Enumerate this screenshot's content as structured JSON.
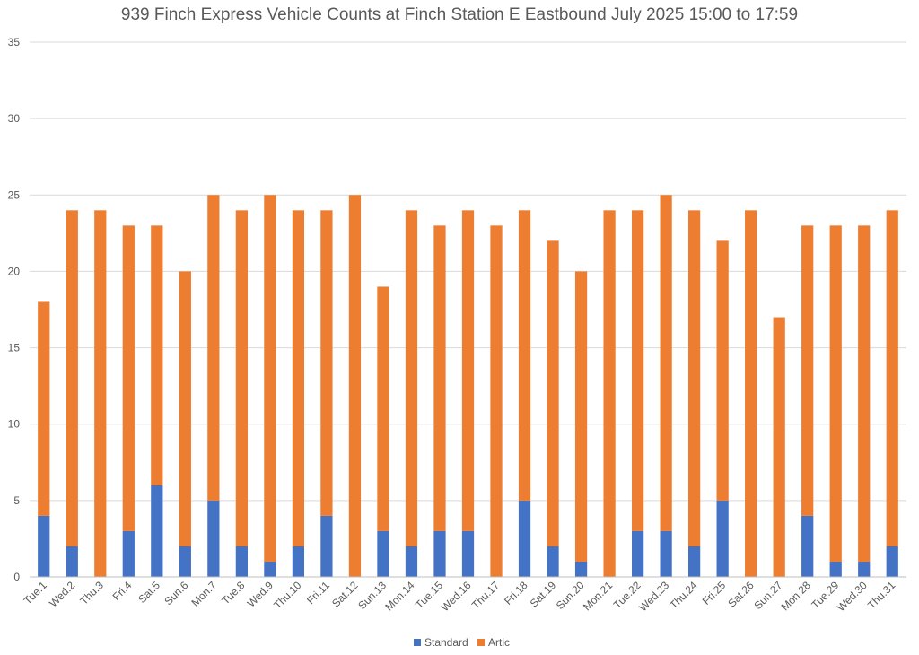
{
  "chart_data": {
    "type": "bar",
    "stacked": true,
    "title": "939 Finch Express Vehicle Counts at Finch Station E Eastbound July 2025  15:00 to 17:59",
    "categories": [
      "Tue.1",
      "Wed.2",
      "Thu.3",
      "Fri.4",
      "Sat.5",
      "Sun.6",
      "Mon.7",
      "Tue.8",
      "Wed.9",
      "Thu.10",
      "Fri.11",
      "Sat.12",
      "Sun.13",
      "Mon.14",
      "Tue.15",
      "Wed.16",
      "Thu.17",
      "Fri.18",
      "Sat.19",
      "Sun.20",
      "Mon.21",
      "Tue.22",
      "Wed.23",
      "Thu.24",
      "Fri.25",
      "Sat.26",
      "Sun.27",
      "Mon.28",
      "Tue.29",
      "Wed.30",
      "Thu.31"
    ],
    "series": [
      {
        "name": "Standard",
        "color": "#4472c4",
        "values": [
          4,
          2,
          0,
          3,
          6,
          2,
          5,
          2,
          1,
          2,
          4,
          0,
          3,
          2,
          3,
          3,
          0,
          5,
          2,
          1,
          0,
          3,
          3,
          2,
          5,
          0,
          0,
          4,
          1,
          1,
          2
        ]
      },
      {
        "name": "Artic",
        "color": "#ed7d31",
        "values": [
          14,
          22,
          24,
          20,
          17,
          18,
          20,
          22,
          24,
          22,
          20,
          25,
          16,
          22,
          20,
          21,
          23,
          19,
          20,
          19,
          24,
          21,
          22,
          22,
          17,
          24,
          17,
          19,
          22,
          22,
          22
        ]
      }
    ],
    "ylim": [
      0,
      35
    ],
    "yticks": [
      0,
      5,
      10,
      15,
      20,
      25,
      30,
      35
    ],
    "grid": true,
    "legend_position": "bottom"
  }
}
